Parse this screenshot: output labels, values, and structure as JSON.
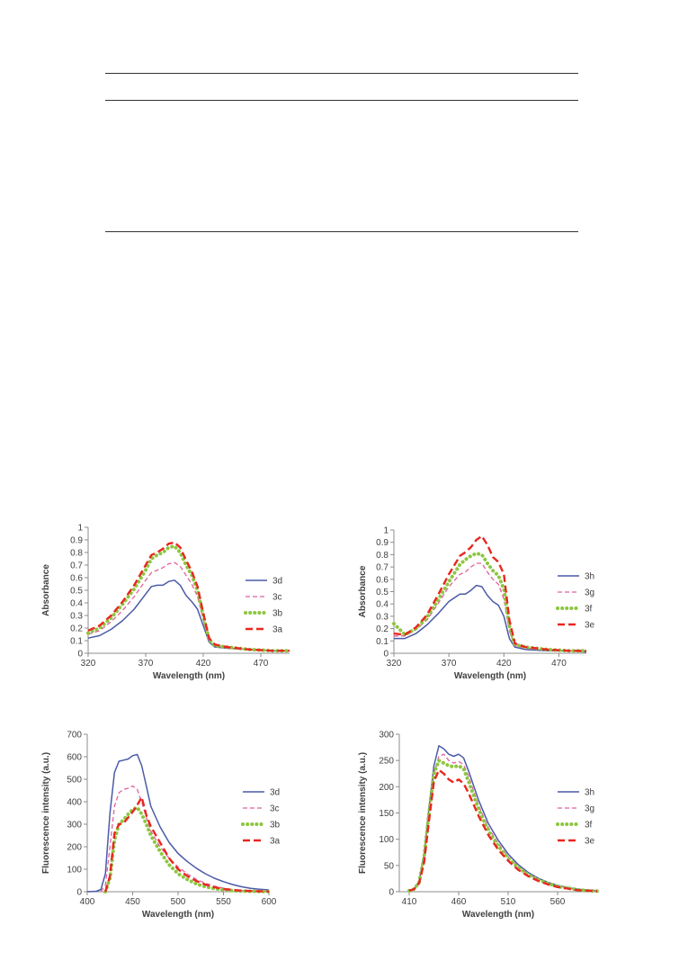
{
  "colors": {
    "3d": "#4a5aa8",
    "3c": "#e0619f",
    "3b": "#8cc63f",
    "3a": "#e8271f",
    "3h": "#4a5aa8",
    "3g": "#e0619f",
    "3f": "#8cc63f",
    "3e": "#e8271f"
  },
  "chart_data": [
    {
      "type": "line",
      "xlabel": "Wavelength (nm)",
      "ylabel": "Absorbance",
      "xlim": [
        320,
        495
      ],
      "ylim": [
        0,
        1
      ],
      "xticks": [
        320,
        370,
        420,
        470
      ],
      "yticks": [
        0,
        0.1,
        0.2,
        0.3,
        0.4,
        0.5,
        0.6,
        0.7,
        0.8,
        0.9,
        1
      ],
      "ytick_labels": [
        "0",
        "0.1",
        "0.2",
        "0.3",
        "0.4",
        "0.5",
        "0.6",
        "0.7",
        "0.8",
        "0.9",
        "1"
      ],
      "legend": "right",
      "series": [
        {
          "name": "3d",
          "style": "solid",
          "x": [
            320,
            330,
            340,
            350,
            360,
            370,
            375,
            380,
            385,
            390,
            395,
            400,
            405,
            410,
            415,
            420,
            425,
            430,
            440,
            460,
            480,
            495
          ],
          "y": [
            0.12,
            0.14,
            0.19,
            0.26,
            0.35,
            0.47,
            0.53,
            0.54,
            0.54,
            0.57,
            0.58,
            0.54,
            0.46,
            0.41,
            0.35,
            0.22,
            0.09,
            0.05,
            0.04,
            0.03,
            0.02,
            0.02
          ]
        },
        {
          "name": "3c",
          "style": "dash",
          "x": [
            320,
            330,
            340,
            350,
            360,
            370,
            375,
            380,
            385,
            390,
            395,
            400,
            405,
            410,
            415,
            420,
            425,
            430,
            440,
            460,
            480,
            495
          ],
          "y": [
            0.15,
            0.18,
            0.25,
            0.34,
            0.45,
            0.58,
            0.64,
            0.66,
            0.68,
            0.71,
            0.72,
            0.69,
            0.62,
            0.55,
            0.45,
            0.27,
            0.1,
            0.06,
            0.04,
            0.03,
            0.02,
            0.02
          ]
        },
        {
          "name": "3b",
          "style": "dot",
          "x": [
            320,
            330,
            340,
            350,
            360,
            370,
            375,
            380,
            385,
            390,
            395,
            400,
            405,
            410,
            415,
            420,
            425,
            430,
            440,
            460,
            480,
            495
          ],
          "y": [
            0.16,
            0.2,
            0.28,
            0.39,
            0.51,
            0.66,
            0.75,
            0.78,
            0.8,
            0.84,
            0.85,
            0.8,
            0.7,
            0.62,
            0.5,
            0.3,
            0.11,
            0.06,
            0.05,
            0.03,
            0.02,
            0.02
          ]
        },
        {
          "name": "3a",
          "style": "dash-long",
          "x": [
            320,
            330,
            340,
            350,
            360,
            370,
            375,
            380,
            385,
            390,
            395,
            400,
            405,
            410,
            415,
            420,
            425,
            430,
            440,
            460,
            480,
            495
          ],
          "y": [
            0.18,
            0.22,
            0.3,
            0.41,
            0.54,
            0.7,
            0.78,
            0.8,
            0.83,
            0.87,
            0.88,
            0.84,
            0.74,
            0.65,
            0.53,
            0.32,
            0.12,
            0.07,
            0.05,
            0.03,
            0.02,
            0.02
          ]
        }
      ]
    },
    {
      "type": "line",
      "xlabel": "Wavelength (nm)",
      "ylabel": "Absorbance",
      "xlim": [
        320,
        495
      ],
      "ylim": [
        0,
        1
      ],
      "xticks": [
        320,
        370,
        420,
        470
      ],
      "yticks": [
        0,
        0.1,
        0.2,
        0.3,
        0.4,
        0.5,
        0.6,
        0.7,
        0.8,
        0.9,
        1
      ],
      "ytick_labels": [
        "0",
        "0.1",
        "0.2",
        "0.3",
        "0.4",
        "0.5",
        "0.6",
        "0.7",
        "0.8",
        "0.9",
        "1"
      ],
      "legend": "right",
      "series": [
        {
          "name": "3h",
          "style": "solid",
          "x": [
            320,
            330,
            340,
            350,
            360,
            370,
            380,
            385,
            390,
            395,
            400,
            405,
            410,
            415,
            420,
            425,
            430,
            440,
            460,
            480,
            495
          ],
          "y": [
            0.12,
            0.12,
            0.16,
            0.23,
            0.32,
            0.42,
            0.48,
            0.48,
            0.51,
            0.55,
            0.54,
            0.47,
            0.42,
            0.39,
            0.3,
            0.12,
            0.05,
            0.03,
            0.02,
            0.02,
            0.01
          ]
        },
        {
          "name": "3g",
          "style": "dash",
          "x": [
            320,
            330,
            340,
            350,
            360,
            370,
            380,
            385,
            390,
            395,
            400,
            405,
            410,
            415,
            420,
            425,
            430,
            440,
            460,
            480,
            495
          ],
          "y": [
            0.14,
            0.14,
            0.19,
            0.27,
            0.4,
            0.54,
            0.64,
            0.66,
            0.7,
            0.73,
            0.73,
            0.66,
            0.6,
            0.56,
            0.44,
            0.18,
            0.06,
            0.04,
            0.03,
            0.02,
            0.02
          ]
        },
        {
          "name": "3f",
          "style": "dot",
          "x": [
            320,
            330,
            340,
            350,
            360,
            370,
            380,
            385,
            390,
            395,
            400,
            405,
            410,
            415,
            420,
            425,
            430,
            440,
            460,
            480,
            495
          ],
          "y": [
            0.24,
            0.15,
            0.2,
            0.29,
            0.43,
            0.58,
            0.72,
            0.76,
            0.79,
            0.81,
            0.8,
            0.73,
            0.67,
            0.63,
            0.52,
            0.22,
            0.07,
            0.05,
            0.03,
            0.02,
            0.02
          ]
        },
        {
          "name": "3e",
          "style": "dash-long",
          "x": [
            320,
            330,
            340,
            350,
            360,
            370,
            380,
            385,
            390,
            395,
            400,
            405,
            410,
            415,
            420,
            425,
            430,
            440,
            460,
            480,
            495
          ],
          "y": [
            0.16,
            0.15,
            0.21,
            0.31,
            0.47,
            0.64,
            0.79,
            0.82,
            0.86,
            0.92,
            0.95,
            0.88,
            0.78,
            0.74,
            0.64,
            0.27,
            0.08,
            0.05,
            0.03,
            0.02,
            0.02
          ]
        }
      ]
    },
    {
      "type": "line",
      "xlabel": "Wavelength (nm)",
      "ylabel": "Fluorescence intensity (a.u.)",
      "xlim": [
        400,
        600
      ],
      "ylim": [
        0,
        700
      ],
      "xticks": [
        400,
        450,
        500,
        550,
        600
      ],
      "yticks": [
        0,
        100,
        200,
        300,
        400,
        500,
        600,
        700
      ],
      "ytick_labels": [
        "0",
        "100",
        "200",
        "300",
        "400",
        "500",
        "600",
        "700"
      ],
      "legend": "right",
      "series": [
        {
          "name": "3d",
          "style": "solid",
          "x": [
            400,
            410,
            415,
            420,
            425,
            430,
            435,
            440,
            445,
            450,
            455,
            460,
            465,
            470,
            480,
            490,
            500,
            510,
            520,
            530,
            540,
            550,
            560,
            570,
            580,
            590,
            600
          ],
          "y": [
            0,
            2,
            10,
            80,
            350,
            530,
            580,
            585,
            590,
            605,
            610,
            560,
            470,
            380,
            290,
            220,
            170,
            135,
            105,
            80,
            60,
            45,
            32,
            22,
            15,
            11,
            8
          ]
        },
        {
          "name": "3c",
          "style": "dash",
          "x": [
            415,
            420,
            425,
            430,
            435,
            440,
            445,
            450,
            455,
            460,
            465,
            470,
            480,
            490,
            500,
            510,
            520,
            530,
            540,
            550,
            560,
            570,
            580,
            590,
            600
          ],
          "y": [
            0,
            30,
            200,
            380,
            440,
            455,
            460,
            470,
            455,
            400,
            330,
            270,
            200,
            150,
            110,
            80,
            55,
            38,
            25,
            16,
            10,
            6,
            4,
            2,
            1
          ]
        },
        {
          "name": "3b",
          "style": "dot",
          "x": [
            420,
            425,
            430,
            435,
            440,
            445,
            450,
            455,
            460,
            465,
            470,
            480,
            490,
            500,
            510,
            520,
            530,
            540,
            550,
            560,
            570,
            580,
            590,
            600
          ],
          "y": [
            0,
            60,
            230,
            300,
            320,
            345,
            365,
            375,
            345,
            300,
            250,
            180,
            120,
            80,
            55,
            35,
            22,
            14,
            9,
            5,
            3,
            2,
            1,
            1
          ]
        },
        {
          "name": "3a",
          "style": "dash-long",
          "x": [
            420,
            425,
            430,
            435,
            440,
            445,
            450,
            455,
            460,
            465,
            470,
            480,
            490,
            500,
            510,
            520,
            530,
            540,
            550,
            560,
            570,
            580,
            590,
            600
          ],
          "y": [
            0,
            70,
            260,
            300,
            305,
            330,
            355,
            385,
            420,
            340,
            290,
            220,
            150,
            100,
            70,
            48,
            32,
            20,
            12,
            8,
            5,
            3,
            2,
            1
          ]
        }
      ]
    },
    {
      "type": "line",
      "xlabel": "Wavelength (nm)",
      "ylabel": "Fluorescence intensity (a.u.)",
      "xlim": [
        400,
        600
      ],
      "ylim": [
        0,
        300
      ],
      "xticks": [
        410,
        460,
        510,
        560
      ],
      "yticks": [
        0,
        50,
        100,
        150,
        200,
        250,
        300
      ],
      "ytick_labels": [
        "0",
        "50",
        "100",
        "150",
        "200",
        "250",
        "300"
      ],
      "legend": "right",
      "series": [
        {
          "name": "3h",
          "style": "solid",
          "x": [
            410,
            415,
            420,
            425,
            430,
            435,
            440,
            445,
            450,
            455,
            460,
            465,
            470,
            480,
            490,
            500,
            510,
            520,
            530,
            540,
            550,
            560,
            570,
            580,
            590,
            600
          ],
          "y": [
            2,
            5,
            20,
            70,
            160,
            240,
            278,
            272,
            262,
            258,
            262,
            255,
            230,
            175,
            130,
            98,
            72,
            52,
            37,
            26,
            18,
            12,
            8,
            5,
            3,
            2
          ]
        },
        {
          "name": "3g",
          "style": "dash",
          "x": [
            410,
            415,
            420,
            425,
            430,
            435,
            440,
            445,
            450,
            455,
            460,
            465,
            470,
            480,
            490,
            500,
            510,
            520,
            530,
            540,
            550,
            560,
            570,
            580,
            590,
            600
          ],
          "y": [
            2,
            5,
            18,
            65,
            150,
            225,
            258,
            262,
            250,
            245,
            248,
            242,
            220,
            165,
            122,
            92,
            67,
            48,
            34,
            24,
            16,
            11,
            7,
            4,
            2,
            1
          ]
        },
        {
          "name": "3f",
          "style": "dot",
          "x": [
            410,
            415,
            420,
            425,
            430,
            435,
            440,
            445,
            450,
            455,
            460,
            465,
            470,
            480,
            490,
            500,
            510,
            520,
            530,
            540,
            550,
            560,
            570,
            580,
            590,
            600
          ],
          "y": [
            2,
            5,
            18,
            65,
            150,
            225,
            250,
            245,
            240,
            238,
            240,
            234,
            210,
            158,
            116,
            87,
            64,
            46,
            33,
            23,
            16,
            10,
            7,
            4,
            2,
            1
          ]
        },
        {
          "name": "3e",
          "style": "dash-long",
          "x": [
            410,
            415,
            420,
            425,
            430,
            435,
            440,
            445,
            450,
            455,
            460,
            465,
            470,
            480,
            490,
            500,
            510,
            520,
            530,
            540,
            550,
            560,
            570,
            580,
            590,
            600
          ],
          "y": [
            2,
            5,
            16,
            55,
            135,
            210,
            232,
            225,
            214,
            208,
            214,
            206,
            188,
            145,
            108,
            80,
            59,
            42,
            30,
            21,
            14,
            9,
            6,
            3,
            2,
            1
          ]
        }
      ]
    }
  ]
}
